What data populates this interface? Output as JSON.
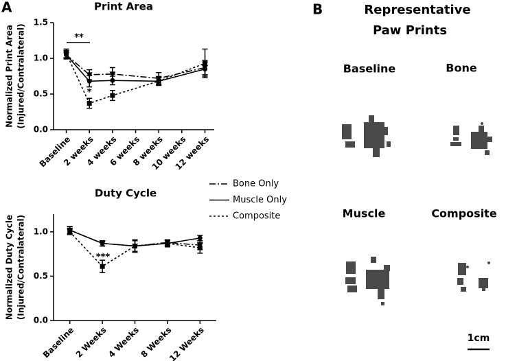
{
  "chart_data": [
    {
      "type": "line",
      "panel": "A",
      "title": "Print  Area",
      "ylabel": [
        "Normalized Print Area",
        "(Injured/Contralateral)"
      ],
      "x": [
        0,
        2,
        4,
        8,
        12
      ],
      "xlim": [
        -1.1,
        12.8
      ],
      "xticks": [
        {
          "value": 0,
          "label": "Baseline"
        },
        {
          "value": 2,
          "label": "2 weeks"
        },
        {
          "value": 4,
          "label": "4 weeks"
        },
        {
          "value": 6,
          "label": "6 weeks"
        },
        {
          "value": 8,
          "label": "8 weeks"
        },
        {
          "value": 10,
          "label": "10 weeks"
        },
        {
          "value": 12,
          "label": "12 weeks"
        }
      ],
      "ylim": [
        0,
        1.5
      ],
      "yticks": [
        {
          "value": 0,
          "label": "0.0"
        },
        0.5,
        {
          "value": 1,
          "label": "1.0"
        },
        1.5
      ],
      "series": [
        {
          "name": "Bone Only",
          "color": "#000000",
          "dash": "9,3,2,3",
          "marker": "triangle",
          "values": [
            1.05,
            0.77,
            0.78,
            0.72,
            0.87
          ],
          "errors": [
            0.05,
            0.07,
            0.09,
            0.08,
            0.1
          ]
        },
        {
          "name": "Muscle Only",
          "color": "#000000",
          "dash": "none",
          "marker": "circle",
          "values": [
            1.05,
            0.68,
            0.69,
            0.68,
            0.85
          ],
          "errors": [
            0.06,
            0.08,
            0.06,
            0.06,
            0.1
          ]
        },
        {
          "name": "Composite",
          "color": "#000000",
          "dash": "3,3",
          "marker": "square",
          "values": [
            1.07,
            0.37,
            0.48,
            0.68,
            0.93
          ],
          "errors": [
            0.06,
            0.07,
            0.07,
            0.05,
            0.2
          ]
        }
      ],
      "annotations": [
        "**",
        "*"
      ]
    },
    {
      "type": "line",
      "title": "Duty  Cycle",
      "ylabel": [
        "Normalized Duty Cycle",
        "(Injured/Contralateral)"
      ],
      "categories": [
        "Baseline",
        "2 Weeks",
        "4 Weeks",
        "8 Weeks",
        "12 Weeks"
      ],
      "ylim": [
        0,
        1.2
      ],
      "yticks": [
        {
          "value": 0,
          "label": "0.0"
        },
        0.5,
        {
          "value": 1,
          "label": "1.0"
        }
      ],
      "series": [
        {
          "color": "#000000",
          "dash": "9,3,2,3",
          "marker": "triangle",
          "values": [
            1.02,
            0.87,
            0.84,
            0.88,
            0.85
          ],
          "errors": [
            0.04,
            0.03,
            0.07,
            0.03,
            0.05
          ]
        },
        {
          "color": "#000000",
          "dash": "none",
          "marker": "circle",
          "values": [
            1.02,
            0.87,
            0.84,
            0.87,
            0.93
          ],
          "errors": [
            0.04,
            0.03,
            0.06,
            0.03,
            0.03
          ]
        },
        {
          "color": "#000000",
          "dash": "3,3",
          "marker": "square",
          "values": [
            1.0,
            0.61,
            0.84,
            0.87,
            0.82
          ],
          "errors": [
            0.03,
            0.07,
            0.07,
            0.04,
            0.06
          ]
        }
      ],
      "annotations": [
        "***"
      ]
    }
  ],
  "panel_b": {
    "label": "B",
    "title": [
      "Representative",
      "Paw Prints"
    ],
    "prints": [
      "Baseline",
      "Bone",
      "Muscle",
      "Composite"
    ],
    "scale": "1cm"
  }
}
